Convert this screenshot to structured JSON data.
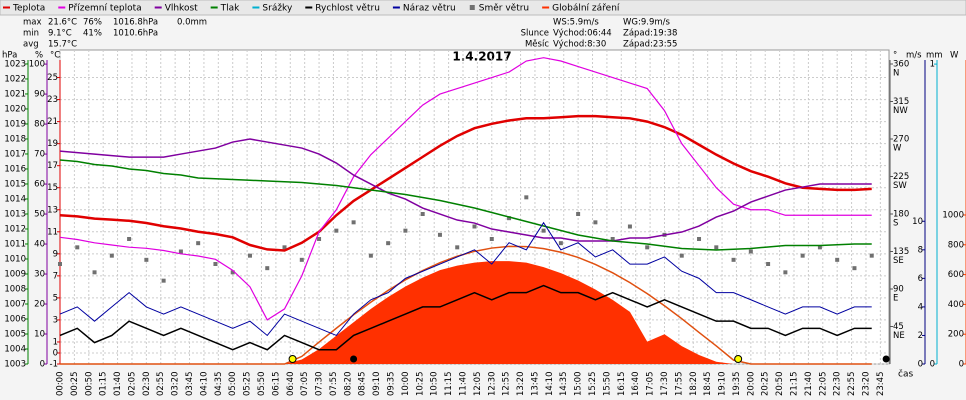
{
  "chart_data": {
    "type": "line",
    "title": "1.4.2017",
    "x_label": "čas",
    "xlim": [
      0,
      1440
    ],
    "x": [
      0,
      30,
      60,
      90,
      120,
      150,
      180,
      210,
      240,
      270,
      300,
      330,
      360,
      390,
      420,
      450,
      480,
      510,
      540,
      570,
      600,
      630,
      660,
      690,
      720,
      750,
      780,
      810,
      840,
      870,
      900,
      930,
      960,
      990,
      1020,
      1050,
      1080,
      1110,
      1140,
      1170,
      1200,
      1230,
      1260,
      1290,
      1320,
      1350,
      1380,
      1410
    ],
    "xticks": [
      {
        "value": 0,
        "label": "00:00"
      },
      {
        "value": 25,
        "label": "00:25"
      },
      {
        "value": 50,
        "label": "00:50"
      },
      {
        "value": 75,
        "label": "01:15"
      },
      {
        "value": 100,
        "label": "01:40"
      },
      {
        "value": 125,
        "label": "02:05"
      },
      {
        "value": 150,
        "label": "02:30"
      },
      {
        "value": 175,
        "label": "02:55"
      },
      {
        "value": 200,
        "label": "03:20"
      },
      {
        "value": 225,
        "label": "03:45"
      },
      {
        "value": 250,
        "label": "04:10"
      },
      {
        "value": 275,
        "label": "04:35"
      },
      {
        "value": 300,
        "label": "05:00"
      },
      {
        "value": 325,
        "label": "05:25"
      },
      {
        "value": 350,
        "label": "05:50"
      },
      {
        "value": 375,
        "label": "06:15"
      },
      {
        "value": 400,
        "label": "06:40"
      },
      {
        "value": 425,
        "label": "07:05"
      },
      {
        "value": 450,
        "label": "07:30"
      },
      {
        "value": 475,
        "label": "07:55"
      },
      {
        "value": 500,
        "label": "08:20"
      },
      {
        "value": 525,
        "label": "08:45"
      },
      {
        "value": 550,
        "label": "09:10"
      },
      {
        "value": 575,
        "label": "09:35"
      },
      {
        "value": 600,
        "label": "10:00"
      },
      {
        "value": 625,
        "label": "10:25"
      },
      {
        "value": 650,
        "label": "10:50"
      },
      {
        "value": 675,
        "label": "11:15"
      },
      {
        "value": 700,
        "label": "11:40"
      },
      {
        "value": 725,
        "label": "12:05"
      },
      {
        "value": 750,
        "label": "12:30"
      },
      {
        "value": 775,
        "label": "12:55"
      },
      {
        "value": 800,
        "label": "13:20"
      },
      {
        "value": 825,
        "label": "13:45"
      },
      {
        "value": 850,
        "label": "14:10"
      },
      {
        "value": 875,
        "label": "14:35"
      },
      {
        "value": 900,
        "label": "15:00"
      },
      {
        "value": 925,
        "label": "15:25"
      },
      {
        "value": 950,
        "label": "15:50"
      },
      {
        "value": 975,
        "label": "16:15"
      },
      {
        "value": 1000,
        "label": "16:40"
      },
      {
        "value": 1025,
        "label": "17:05"
      },
      {
        "value": 1050,
        "label": "17:30"
      },
      {
        "value": 1075,
        "label": "17:55"
      },
      {
        "value": 1100,
        "label": "18:20"
      },
      {
        "value": 1125,
        "label": "18:45"
      },
      {
        "value": 1150,
        "label": "19:10"
      },
      {
        "value": 1175,
        "label": "19:35"
      },
      {
        "value": 1200,
        "label": "20:00"
      },
      {
        "value": 1225,
        "label": "20:25"
      },
      {
        "value": 1250,
        "label": "20:50"
      },
      {
        "value": 1275,
        "label": "21:15"
      },
      {
        "value": 1300,
        "label": "21:40"
      },
      {
        "value": 1325,
        "label": "22:05"
      },
      {
        "value": 1350,
        "label": "22:30"
      },
      {
        "value": 1375,
        "label": "22:55"
      },
      {
        "value": 1400,
        "label": "23:20"
      },
      {
        "value": 1425,
        "label": "23:45"
      }
    ],
    "grid": true,
    "axes": {
      "p": {
        "label": "hPa",
        "color": "#008000",
        "lim": [
          1003,
          1023.93
        ],
        "ticks": [
          1003,
          1004,
          1005,
          1006,
          1007,
          1008,
          1009,
          1010,
          1011,
          1012,
          1013,
          1014,
          1015,
          1016,
          1017,
          1018,
          1019,
          1020,
          1021,
          1022,
          1023
        ]
      },
      "h": {
        "label": "%",
        "color": "#8000a0",
        "lim": [
          0,
          104.7
        ],
        "ticks": [
          0,
          10,
          20,
          30,
          40,
          50,
          60,
          70,
          80,
          90,
          100
        ]
      },
      "t": {
        "label": "°C",
        "color": "#e00000",
        "lim": [
          -1,
          27.5
        ],
        "ticks": [
          -1,
          0,
          1,
          3,
          5,
          7,
          9,
          11,
          13,
          15,
          17,
          19,
          21,
          23,
          25
        ]
      },
      "d": {
        "label": "°",
        "color": "#555555",
        "lim": [
          0,
          376.8
        ],
        "ticks": [
          45,
          90,
          135,
          180,
          225,
          270,
          315,
          360
        ],
        "tick_names": [
          "NE",
          "E",
          "SE",
          "S",
          "SW",
          "W",
          "NW",
          "N"
        ]
      },
      "w": {
        "label": "m/s",
        "color": "#000080",
        "lim": [
          0,
          22
        ],
        "ticks": [
          0,
          2,
          4,
          6,
          8,
          10
        ]
      },
      "mm": {
        "label": "mm",
        "color": "#00b0d0",
        "lim": [
          0,
          1.047
        ],
        "ticks": [
          0,
          1
        ]
      },
      "r": {
        "label": "W",
        "color": "#ff4000",
        "lim": [
          0,
          2107
        ],
        "ticks": [
          0,
          200,
          400,
          600,
          800,
          1000
        ]
      }
    },
    "series": [
      {
        "name": "Teplota",
        "color": "#e00000",
        "axis": "t",
        "style": "line",
        "width": 2.5,
        "values": [
          12.5,
          12.4,
          12.2,
          12.1,
          12.0,
          11.8,
          11.5,
          11.3,
          11.0,
          10.8,
          10.5,
          9.8,
          9.4,
          9.3,
          10.0,
          11.0,
          12.5,
          13.8,
          14.8,
          15.8,
          16.8,
          17.8,
          18.8,
          19.7,
          20.4,
          20.8,
          21.1,
          21.3,
          21.3,
          21.4,
          21.5,
          21.5,
          21.4,
          21.3,
          21.0,
          20.5,
          19.8,
          18.9,
          18.0,
          17.2,
          16.5,
          16.0,
          15.4,
          15.0,
          14.9,
          14.8,
          14.8,
          14.9
        ]
      },
      {
        "name": "Přízemní teplota",
        "color": "#e000e0",
        "axis": "t",
        "style": "line",
        "width": 1.2,
        "values": [
          10.5,
          10.3,
          10.0,
          9.8,
          9.6,
          9.5,
          9.3,
          9.0,
          8.8,
          8.5,
          7.5,
          6.0,
          3.0,
          4.0,
          7.0,
          11.0,
          13.0,
          16.0,
          18.0,
          19.5,
          21.0,
          22.5,
          23.5,
          24.0,
          24.5,
          25.0,
          25.5,
          26.5,
          26.8,
          26.5,
          26.0,
          25.5,
          25.0,
          24.5,
          24.0,
          22.0,
          19.0,
          17.0,
          15.0,
          13.5,
          13.0,
          13.0,
          12.5,
          12.5,
          12.5,
          12.5,
          12.5,
          12.5
        ]
      },
      {
        "name": "Vlhkost",
        "color": "#8000a0",
        "axis": "h",
        "style": "line",
        "width": 1.5,
        "values": [
          71,
          70.5,
          70,
          69.5,
          69,
          69,
          69,
          70,
          71,
          72,
          74,
          75,
          74,
          73,
          72,
          70,
          67,
          63,
          60,
          57,
          55,
          52,
          50,
          48,
          47,
          45,
          44,
          43,
          42,
          42,
          41,
          41,
          41,
          42,
          42,
          43,
          44,
          46,
          49,
          51,
          54,
          56,
          58,
          59,
          60,
          60,
          60,
          60
        ]
      },
      {
        "name": "Tlak",
        "color": "#008000",
        "axis": "p",
        "style": "line",
        "width": 1.5,
        "values": [
          1016.6,
          1016.5,
          1016.3,
          1016.2,
          1016.0,
          1015.9,
          1015.7,
          1015.6,
          1015.4,
          1015.35,
          1015.3,
          1015.25,
          1015.2,
          1015.15,
          1015.1,
          1015.0,
          1014.9,
          1014.75,
          1014.6,
          1014.45,
          1014.3,
          1014.1,
          1013.9,
          1013.65,
          1013.4,
          1013.1,
          1012.8,
          1012.5,
          1012.2,
          1011.9,
          1011.6,
          1011.4,
          1011.2,
          1011.1,
          1011.0,
          1010.85,
          1010.7,
          1010.65,
          1010.6,
          1010.65,
          1010.7,
          1010.8,
          1010.9,
          1010.9,
          1010.9,
          1010.95,
          1011.0,
          1011.0
        ]
      },
      {
        "name": "Srážky",
        "color": "#00b0d0",
        "axis": "mm",
        "style": "bar",
        "width": 1,
        "values": [
          0,
          0,
          0,
          0,
          0,
          0,
          0,
          0,
          0,
          0,
          0,
          0,
          0,
          0,
          0,
          0,
          0,
          0,
          0,
          0,
          0,
          0,
          0,
          0,
          0,
          0,
          0,
          0,
          0,
          0,
          0,
          0,
          0,
          0,
          0,
          0,
          0,
          0,
          0,
          0,
          0,
          0,
          0,
          0,
          0,
          0,
          0,
          0
        ]
      },
      {
        "name": "Rychlost větru",
        "color": "#000000",
        "axis": "w",
        "style": "line",
        "width": 1.5,
        "values": [
          2,
          2.5,
          1.5,
          2,
          3,
          2.5,
          2,
          2.5,
          2,
          1.5,
          1,
          1.5,
          1,
          2,
          1.5,
          1,
          1,
          2,
          2.5,
          3,
          3.5,
          4,
          4,
          4.5,
          5,
          4.5,
          5,
          5,
          5.5,
          5,
          5,
          4.5,
          5,
          4.5,
          4,
          4.5,
          4,
          3.5,
          3,
          3,
          2.5,
          2.5,
          2,
          2.5,
          2.5,
          2,
          2.5,
          2.5
        ]
      },
      {
        "name": "Náraz větru",
        "color": "#0000a0",
        "axis": "w",
        "style": "line",
        "width": 1,
        "values": [
          3.5,
          4,
          3,
          4,
          5,
          4,
          3.5,
          4,
          3.5,
          3,
          2.5,
          3,
          2,
          3.5,
          3,
          2.5,
          2,
          3.5,
          4.5,
          5,
          6,
          6.5,
          7,
          7.5,
          8,
          7,
          8.5,
          8,
          9.9,
          8,
          8.5,
          7.5,
          8,
          7,
          7,
          7.5,
          6.5,
          6,
          5,
          5,
          4.5,
          4,
          3.5,
          4,
          4,
          3.5,
          4,
          4
        ]
      },
      {
        "name": "Směr větru",
        "color": "#707070",
        "axis": "d",
        "style": "scatter",
        "width": 1,
        "values": [
          120,
          140,
          110,
          130,
          150,
          125,
          100,
          135,
          145,
          120,
          110,
          130,
          115,
          140,
          125,
          150,
          160,
          170,
          130,
          145,
          160,
          180,
          155,
          140,
          165,
          150,
          175,
          200,
          160,
          145,
          180,
          170,
          150,
          165,
          140,
          155,
          130,
          150,
          140,
          125,
          135,
          120,
          110,
          130,
          140,
          125,
          115,
          130
        ]
      },
      {
        "name": "Globální záření",
        "color": "#ff3000",
        "axis": "r",
        "style": "area",
        "width": 1,
        "values": [
          0,
          0,
          0,
          0,
          0,
          0,
          0,
          0,
          0,
          0,
          0,
          0,
          0,
          0,
          30,
          100,
          190,
          280,
          370,
          450,
          520,
          580,
          630,
          660,
          680,
          690,
          690,
          680,
          650,
          610,
          560,
          500,
          430,
          350,
          150,
          200,
          120,
          60,
          15,
          0,
          0,
          0,
          0,
          0,
          0,
          0,
          0,
          0
        ]
      }
    ],
    "clear_sky": {
      "color": "#e05010",
      "axis": "r",
      "values": [
        0,
        0,
        0,
        0,
        0,
        0,
        0,
        0,
        0,
        0,
        0,
        0,
        0,
        0,
        51,
        147,
        240,
        330,
        415,
        494,
        565,
        627,
        680,
        723,
        756,
        778,
        789,
        788,
        774,
        750,
        715,
        668,
        612,
        546,
        472,
        391,
        304,
        212,
        121,
        26,
        0,
        0,
        0,
        0,
        0,
        0,
        0,
        0
      ]
    },
    "sun": {
      "color": "#ffff00",
      "x": [
        404,
        1178
      ]
    },
    "moon": {
      "color": "#000000",
      "x": [
        510,
        1435
      ]
    },
    "stats": [
      [
        "max",
        "21.6°C",
        "76%",
        "1016.8hPa",
        "0.0mm"
      ],
      [
        "min",
        "9.1°C",
        "41%",
        "1010.6hPa"
      ],
      [
        "avg",
        "15.7°C"
      ]
    ],
    "stats_colors": [
      "#000000",
      "#e00000",
      "#8000a0",
      "#e00000",
      "#00b0d0"
    ],
    "info": [
      {
        "items": [
          "WS:5.9m/s",
          "WG:9.9m/s"
        ]
      },
      {
        "label": "Slunce",
        "items": [
          "Východ:06:44",
          "Západ:19:38"
        ]
      },
      {
        "label": "Měsíc",
        "items": [
          "Východ:8:30",
          "Západ:23:55"
        ]
      }
    ]
  }
}
